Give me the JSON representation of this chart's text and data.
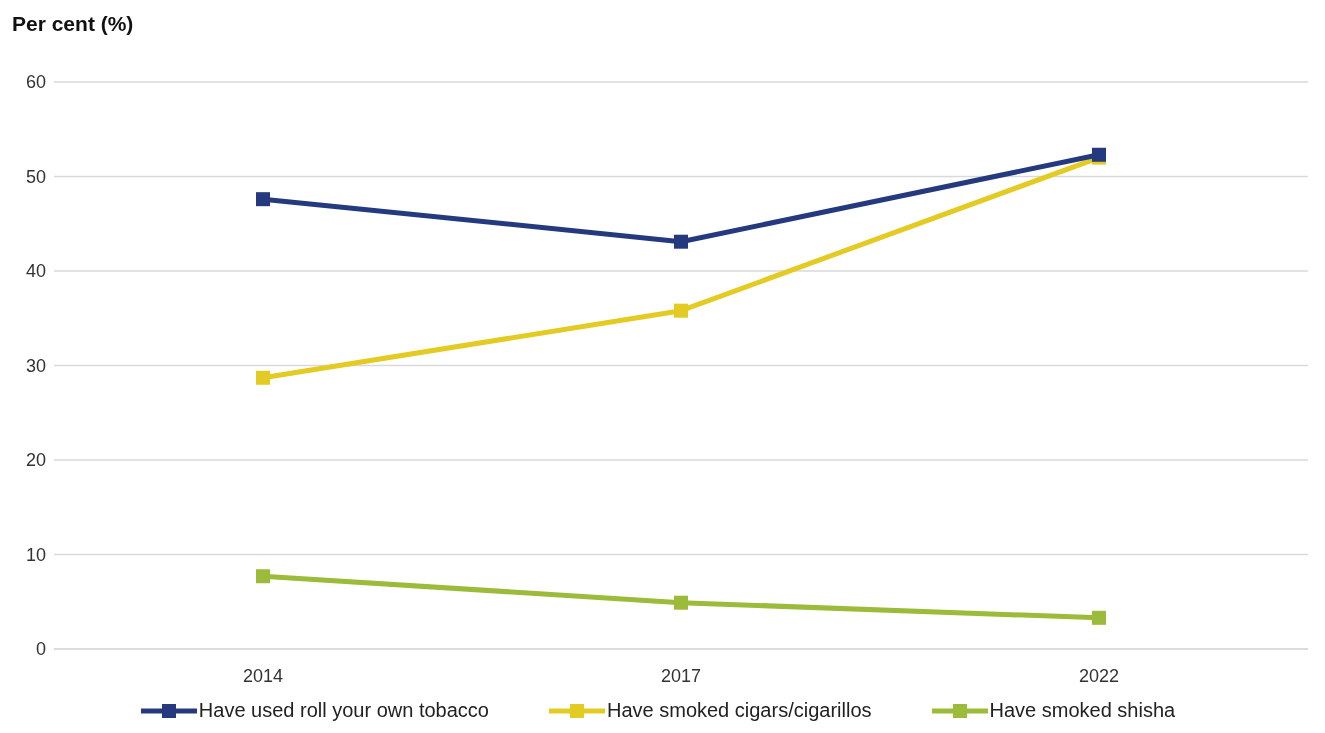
{
  "chart_data": {
    "type": "line",
    "ylabel": "Per cent (%)",
    "categories": [
      "2014",
      "2017",
      "2022"
    ],
    "series": [
      {
        "name": "Have used roll your own tobacco",
        "color": "#253a7e",
        "values": [
          47.6,
          43.1,
          52.3
        ]
      },
      {
        "name": "Have smoked cigars/cigarillos",
        "color": "#e3cb23",
        "values": [
          28.7,
          35.8,
          52.0
        ]
      },
      {
        "name": "Have smoked shisha",
        "color": "#9dbb3a",
        "values": [
          7.7,
          4.9,
          3.3
        ]
      }
    ],
    "ylim": [
      0,
      60
    ],
    "yticks": [
      0,
      10,
      20,
      30,
      40,
      50,
      60
    ],
    "grid": "y",
    "legend": "bottom",
    "marker": "square"
  }
}
